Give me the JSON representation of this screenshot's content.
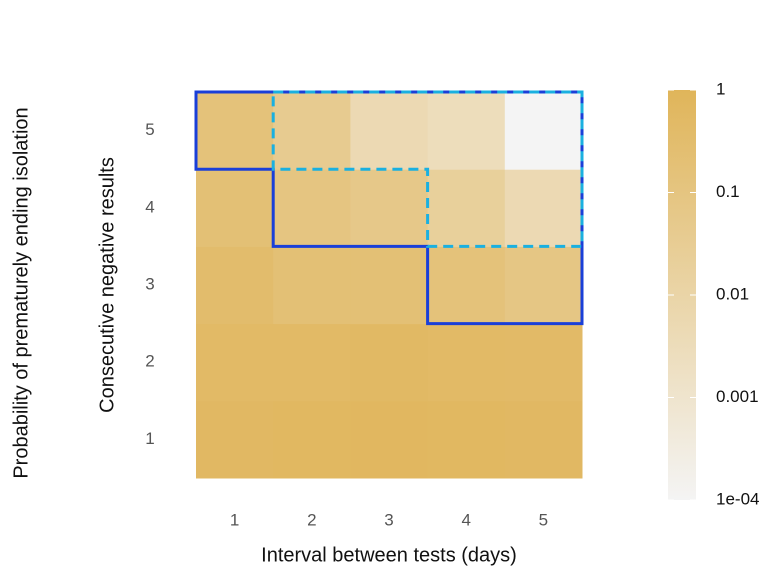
{
  "chart_data": {
    "type": "heatmap",
    "colorbar_title": "Probability of prematurely ending isolation",
    "xlabel": "Interval between tests (days)",
    "ylabel": "Consecutive negative results",
    "x_categories": [
      "1",
      "2",
      "3",
      "4",
      "5"
    ],
    "y_categories": [
      "1",
      "2",
      "3",
      "4",
      "5"
    ],
    "values": [
      [
        0.6,
        0.65,
        0.7,
        0.65,
        0.6
      ],
      [
        0.5,
        0.5,
        0.55,
        0.5,
        0.45
      ],
      [
        0.35,
        0.2,
        0.2,
        0.15,
        0.08
      ],
      [
        0.2,
        0.1,
        0.06,
        0.02,
        0.005
      ],
      [
        0.15,
        0.04,
        0.005,
        0.003,
        0.0001
      ]
    ],
    "zlim": [
      0.0001,
      1
    ],
    "zticks": [
      1,
      0.1,
      0.01,
      0.001,
      {
        "value": 0.0001,
        "label": "1e-04"
      }
    ],
    "log_scale": true,
    "colormap": [
      "#f4f4f4",
      "#e0b55a"
    ]
  }
}
